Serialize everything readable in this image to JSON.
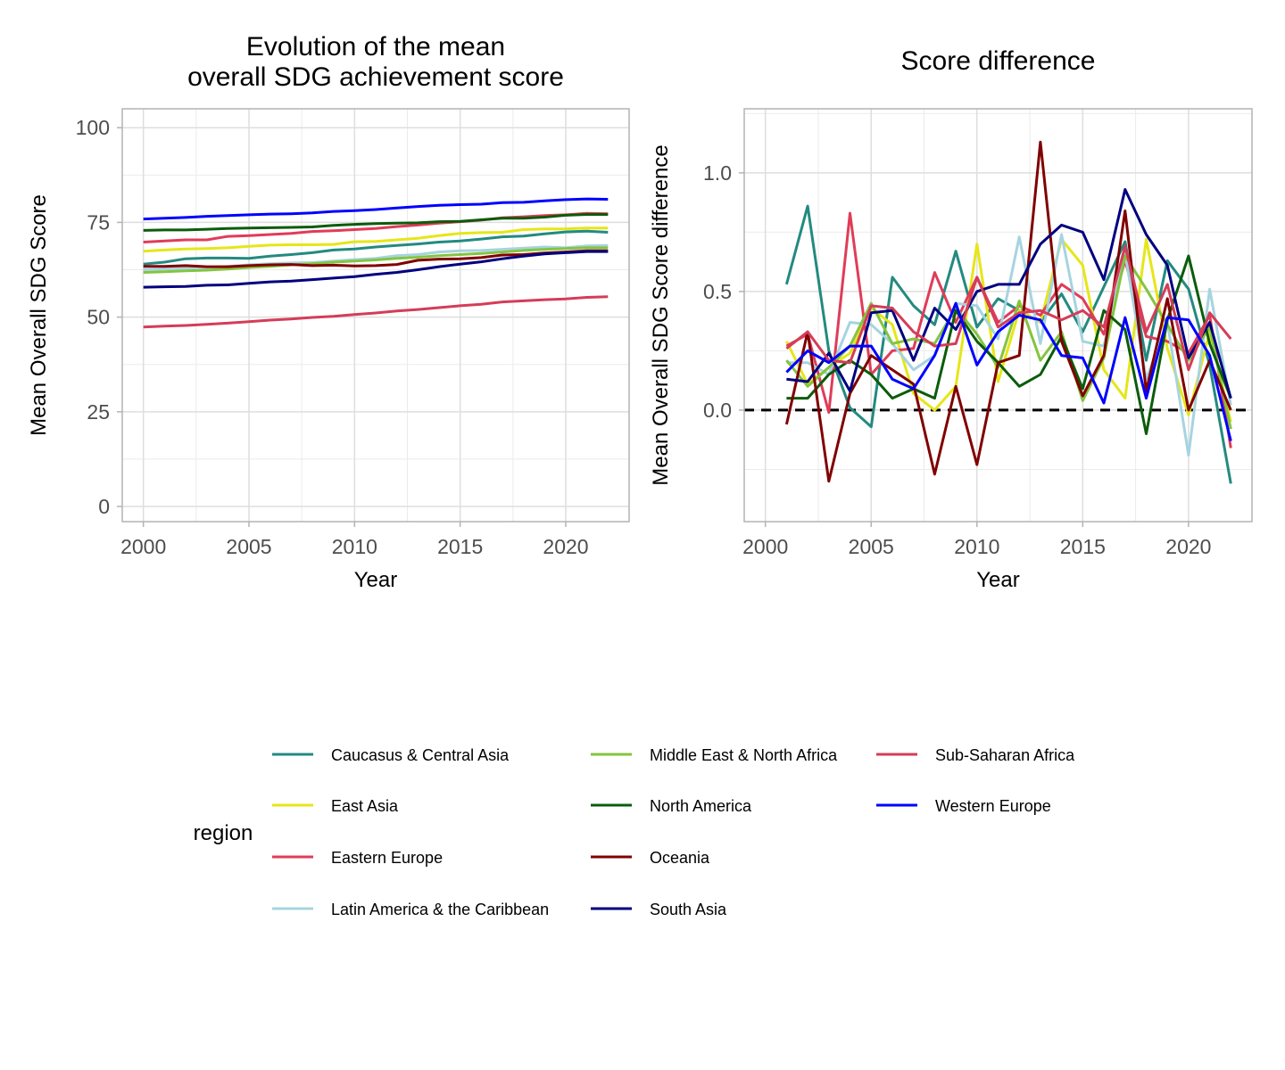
{
  "chart_data": [
    {
      "type": "line",
      "title": "Evolution of the mean overall SDG achievement score",
      "title_lines": [
        "Evolution of the mean",
        "overall SDG achievement score"
      ],
      "xlabel": "Year",
      "ylabel": "Mean Overall SDG Score",
      "xlim": [
        1999,
        2023
      ],
      "ylim": [
        -4,
        105
      ],
      "x_ticks": [
        2000,
        2005,
        2010,
        2015,
        2020
      ],
      "y_ticks": [
        0,
        25,
        50,
        75,
        100
      ],
      "y_tick_labels": [
        "0",
        "25",
        "50",
        "75",
        "100"
      ],
      "grid": true,
      "x": [
        2000,
        2001,
        2002,
        2003,
        2004,
        2005,
        2006,
        2007,
        2008,
        2009,
        2010,
        2011,
        2012,
        2013,
        2014,
        2015,
        2016,
        2017,
        2018,
        2019,
        2020,
        2021,
        2022
      ],
      "series": [
        {
          "name": "Caucasus & Central Asia",
          "color": "#238A80",
          "values": [
            64.0,
            64.5,
            65.4,
            65.6,
            65.6,
            65.5,
            66.1,
            66.5,
            67.0,
            67.7,
            68.0,
            68.5,
            68.9,
            69.3,
            69.8,
            70.1,
            70.6,
            71.2,
            71.4,
            72.0,
            72.5,
            72.7,
            72.4
          ]
        },
        {
          "name": "East Asia",
          "color": "#E6E619",
          "values": [
            67.4,
            67.7,
            68.0,
            68.1,
            68.3,
            68.7,
            69.0,
            69.1,
            69.1,
            69.2,
            69.9,
            70.0,
            70.4,
            70.8,
            71.5,
            72.1,
            72.3,
            72.4,
            73.1,
            73.3,
            73.3,
            73.5,
            73.5
          ]
        },
        {
          "name": "Eastern Europe",
          "color": "#E03C58",
          "values": [
            69.8,
            70.1,
            70.4,
            70.4,
            71.3,
            71.5,
            71.8,
            72.1,
            72.6,
            72.8,
            73.1,
            73.4,
            73.9,
            74.3,
            74.8,
            75.2,
            75.6,
            76.2,
            76.5,
            76.8,
            77.0,
            77.4,
            77.3
          ]
        },
        {
          "name": "Latin America & the Caribbean",
          "color": "#A6D4E0",
          "values": [
            62.5,
            62.7,
            62.9,
            63.1,
            63.4,
            63.8,
            64.1,
            64.3,
            64.4,
            64.8,
            65.2,
            65.5,
            66.2,
            66.5,
            67.2,
            67.5,
            67.6,
            67.9,
            68.2,
            68.5,
            68.3,
            68.8,
            68.9
          ]
        },
        {
          "name": "Middle East & North Africa",
          "color": "#84C440",
          "values": [
            61.8,
            62.0,
            62.2,
            62.4,
            62.7,
            63.1,
            63.4,
            63.8,
            64.1,
            64.5,
            64.8,
            65.1,
            65.5,
            65.8,
            66.2,
            66.5,
            66.8,
            67.2,
            67.6,
            67.9,
            68.1,
            68.3,
            68.3
          ]
        },
        {
          "name": "North America",
          "color": "#0B5C0B",
          "values": [
            72.9,
            73.0,
            73.0,
            73.2,
            73.4,
            73.5,
            73.6,
            73.7,
            73.8,
            74.2,
            74.5,
            74.7,
            74.8,
            74.9,
            75.2,
            75.3,
            75.7,
            76.1,
            76.1,
            76.4,
            76.9,
            77.1,
            77.1
          ]
        },
        {
          "name": "Oceania",
          "color": "#800000",
          "values": [
            63.4,
            63.4,
            63.6,
            63.3,
            63.3,
            63.6,
            63.8,
            63.9,
            63.6,
            63.7,
            63.5,
            63.6,
            63.9,
            65.0,
            65.3,
            65.4,
            65.7,
            66.4,
            66.5,
            66.9,
            67.2,
            67.5,
            67.5
          ]
        },
        {
          "name": "South Asia",
          "color": "#000080",
          "values": [
            57.9,
            58.0,
            58.1,
            58.4,
            58.5,
            58.9,
            59.3,
            59.5,
            59.9,
            60.3,
            60.7,
            61.3,
            61.8,
            62.5,
            63.3,
            64.0,
            64.6,
            65.4,
            66.1,
            66.7,
            67.0,
            67.3,
            67.3
          ]
        },
        {
          "name": "Sub-Saharan Africa",
          "color": "#D43D58",
          "values": [
            47.4,
            47.6,
            47.8,
            48.1,
            48.4,
            48.8,
            49.2,
            49.5,
            49.9,
            50.2,
            50.7,
            51.1,
            51.6,
            52.0,
            52.5,
            53.0,
            53.4,
            54.0,
            54.3,
            54.6,
            54.8,
            55.2,
            55.4
          ]
        },
        {
          "name": "Western Europe",
          "color": "#0000FF",
          "values": [
            75.9,
            76.1,
            76.3,
            76.6,
            76.8,
            77.0,
            77.2,
            77.3,
            77.5,
            77.9,
            78.1,
            78.4,
            78.8,
            79.2,
            79.5,
            79.7,
            79.8,
            80.2,
            80.3,
            80.7,
            81.0,
            81.2,
            81.1
          ]
        }
      ]
    },
    {
      "type": "line",
      "title": "Score difference",
      "xlabel": "Year",
      "ylabel": "Mean Overall SDG Score difference",
      "xlim": [
        1999,
        2023
      ],
      "ylim": [
        -0.47,
        1.27
      ],
      "x_ticks": [
        2000,
        2005,
        2010,
        2015,
        2020
      ],
      "y_ticks": [
        0.0,
        0.5,
        1.0
      ],
      "y_tick_labels": [
        "0.0",
        "0.5",
        "1.0"
      ],
      "grid": true,
      "reference_line": {
        "y": 0,
        "style": "dashed",
        "color": "#000000"
      },
      "x": [
        2001,
        2002,
        2003,
        2004,
        2005,
        2006,
        2007,
        2008,
        2009,
        2010,
        2011,
        2012,
        2013,
        2014,
        2015,
        2016,
        2017,
        2018,
        2019,
        2020,
        2021,
        2022
      ],
      "series": [
        {
          "name": "Caucasus & Central Asia",
          "color": "#238A80",
          "values": [
            0.53,
            0.86,
            0.25,
            0.01,
            -0.07,
            0.56,
            0.44,
            0.36,
            0.67,
            0.35,
            0.47,
            0.42,
            0.37,
            0.49,
            0.33,
            0.52,
            0.71,
            0.21,
            0.63,
            0.51,
            0.19,
            -0.31
          ]
        },
        {
          "name": "East Asia",
          "color": "#E6E619",
          "values": [
            0.29,
            0.11,
            0.18,
            0.24,
            0.43,
            0.36,
            0.07,
            0.0,
            0.1,
            0.7,
            0.12,
            0.42,
            0.37,
            0.72,
            0.61,
            0.17,
            0.05,
            0.72,
            0.26,
            -0.02,
            0.33,
            -0.05
          ]
        },
        {
          "name": "Eastern Europe",
          "color": "#E03C58",
          "values": [
            0.27,
            0.32,
            -0.01,
            0.83,
            0.15,
            0.25,
            0.26,
            0.58,
            0.37,
            0.56,
            0.37,
            0.44,
            0.4,
            0.53,
            0.47,
            0.32,
            0.63,
            0.31,
            0.29,
            0.24,
            0.4,
            -0.16
          ]
        },
        {
          "name": "Latin America & the Caribbean",
          "color": "#A6D4E0",
          "values": [
            0.2,
            0.2,
            0.15,
            0.37,
            0.36,
            0.28,
            0.17,
            0.23,
            0.45,
            0.44,
            0.3,
            0.73,
            0.28,
            0.74,
            0.29,
            0.27,
            0.66,
            0.13,
            0.37,
            -0.19,
            0.51,
            0.02
          ]
        },
        {
          "name": "Middle East & North Africa",
          "color": "#84C440",
          "values": [
            0.21,
            0.1,
            0.18,
            0.27,
            0.45,
            0.28,
            0.3,
            0.28,
            0.43,
            0.32,
            0.18,
            0.46,
            0.21,
            0.33,
            0.04,
            0.22,
            0.65,
            0.51,
            0.36,
            0.21,
            0.35,
            -0.08
          ]
        },
        {
          "name": "North America",
          "color": "#0B5C0B",
          "values": [
            0.05,
            0.05,
            0.15,
            0.21,
            0.15,
            0.05,
            0.09,
            0.05,
            0.42,
            0.29,
            0.2,
            0.1,
            0.15,
            0.31,
            0.09,
            0.42,
            0.34,
            -0.1,
            0.38,
            0.65,
            0.28,
            0.05
          ]
        },
        {
          "name": "Oceania",
          "color": "#800000",
          "values": [
            -0.06,
            0.33,
            -0.3,
            0.07,
            0.23,
            0.17,
            0.11,
            -0.27,
            0.1,
            -0.23,
            0.2,
            0.23,
            1.13,
            0.29,
            0.06,
            0.23,
            0.84,
            0.08,
            0.47,
            0.0,
            0.21,
            0.0
          ]
        },
        {
          "name": "South Asia",
          "color": "#000080",
          "values": [
            0.13,
            0.12,
            0.24,
            0.08,
            0.41,
            0.42,
            0.21,
            0.43,
            0.34,
            0.5,
            0.53,
            0.53,
            0.7,
            0.78,
            0.75,
            0.55,
            0.93,
            0.74,
            0.61,
            0.22,
            0.37,
            0.05
          ]
        },
        {
          "name": "Sub-Saharan Africa",
          "color": "#D43D58",
          "values": [
            0.26,
            0.33,
            0.21,
            0.2,
            0.44,
            0.43,
            0.33,
            0.27,
            0.28,
            0.56,
            0.35,
            0.41,
            0.42,
            0.38,
            0.42,
            0.35,
            0.69,
            0.33,
            0.53,
            0.17,
            0.41,
            0.3
          ]
        },
        {
          "name": "Western Europe",
          "color": "#0000FF",
          "values": [
            0.16,
            0.25,
            0.2,
            0.27,
            0.27,
            0.13,
            0.09,
            0.23,
            0.45,
            0.19,
            0.33,
            0.4,
            0.38,
            0.23,
            0.22,
            0.03,
            0.39,
            0.05,
            0.39,
            0.38,
            0.23,
            -0.13
          ]
        }
      ]
    }
  ],
  "legend": {
    "title": "region",
    "position": "bottom",
    "columns": [
      [
        "Caucasus & Central Asia",
        "East Asia",
        "Eastern Europe",
        "Latin America & the Caribbean"
      ],
      [
        "Middle East & North Africa",
        "North America",
        "Oceania",
        "South Asia"
      ],
      [
        "Sub-Saharan Africa",
        "Western Europe"
      ]
    ]
  }
}
